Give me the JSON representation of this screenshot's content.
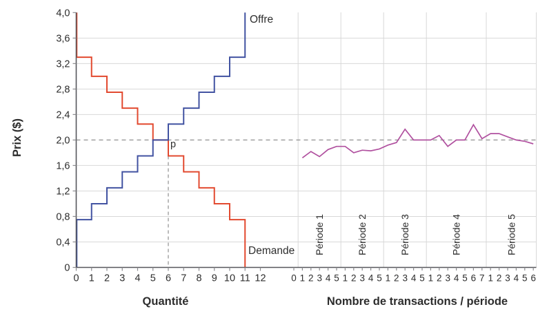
{
  "colors": {
    "supply": "#4152a1",
    "demand": "#e2492f",
    "transactions": "#b0509f",
    "gridline": "#d8d8d8",
    "dashed": "#909090",
    "axis": "#55565a",
    "tick": "#8a8a8e",
    "text": "#2d2d2d"
  },
  "chart_data": [
    {
      "type": "step",
      "xlabel": "Quantité",
      "ylabel": "Prix ($)",
      "xlim": [
        0,
        12
      ],
      "ylim": [
        0,
        4
      ],
      "x_ticks": [
        "0",
        "1",
        "2",
        "3",
        "4",
        "5",
        "6",
        "7",
        "8",
        "9",
        "10",
        "11",
        "12"
      ],
      "y_ticks": [
        "0",
        "0,4",
        "0,8",
        "1,2",
        "1,6",
        "2,0",
        "2,4",
        "2,8",
        "3,2",
        "3,6",
        "4,0"
      ],
      "grid": "horizontal gridlines every 0,4; value 2,0 drawn as dashed reference line",
      "series": [
        {
          "name": "Offre",
          "type": "supply-steps",
          "start_price": 0,
          "step_values": [
            0.75,
            1.0,
            1.25,
            1.5,
            1.75,
            2.0,
            2.25,
            2.5,
            2.75,
            3.0,
            3.3
          ],
          "end_price": 4.0
        },
        {
          "name": "Demande",
          "type": "demand-steps",
          "start_price": 4.0,
          "step_values": [
            3.3,
            3.0,
            2.75,
            2.5,
            2.25,
            2.0,
            1.75,
            1.5,
            1.25,
            1.0,
            0.75
          ],
          "end_price": 0
        }
      ],
      "equilibrium": {
        "label": "p",
        "price": 2.0,
        "quantity": 6
      }
    },
    {
      "type": "line",
      "xlabel": "Nombre de transactions / période",
      "ylim": [
        0,
        4
      ],
      "reference_price_dashed": 2.0,
      "periods": [
        {
          "label": "Période 1",
          "tick_labels": [
            "0",
            "1",
            "2",
            "3",
            "4",
            "5"
          ],
          "values": [
            1.72,
            1.82,
            1.74,
            1.85,
            1.9
          ]
        },
        {
          "label": "Période 2",
          "tick_labels": [
            "1",
            "2",
            "3",
            "4",
            "5"
          ],
          "values": [
            1.9,
            1.8,
            1.84,
            1.83,
            1.86
          ]
        },
        {
          "label": "Période 3",
          "tick_labels": [
            "1",
            "2",
            "3",
            "4",
            "5"
          ],
          "values": [
            1.92,
            1.96,
            2.17,
            2.0,
            2.0
          ]
        },
        {
          "label": "Période 4",
          "tick_labels": [
            "1",
            "2",
            "3",
            "4",
            "5",
            "6",
            "7"
          ],
          "values": [
            2.0,
            2.07,
            1.9,
            2.0,
            2.0,
            2.24,
            2.02
          ]
        },
        {
          "label": "Période 5",
          "tick_labels": [
            "1",
            "2",
            "3",
            "4",
            "5",
            "6"
          ],
          "values": [
            2.1,
            2.1,
            2.05,
            2.0,
            1.98,
            1.94
          ]
        }
      ]
    }
  ]
}
